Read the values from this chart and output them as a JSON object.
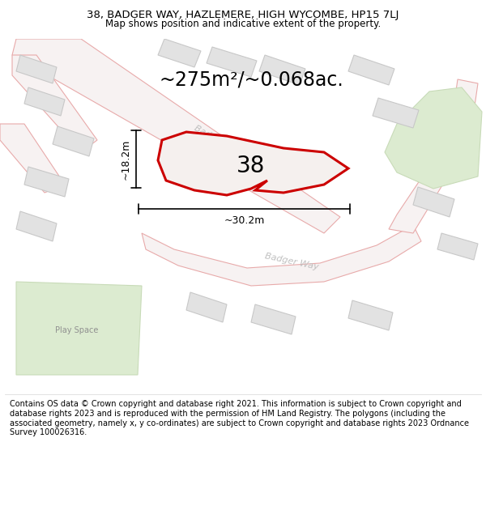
{
  "title_line1": "38, BADGER WAY, HAZLEMERE, HIGH WYCOMBE, HP15 7LJ",
  "title_line2": "Map shows position and indicative extent of the property.",
  "footer": "Contains OS data © Crown copyright and database right 2021. This information is subject to Crown copyright and database rights 2023 and is reproduced with the permission of HM Land Registry. The polygons (including the associated geometry, namely x, y co-ordinates) are subject to Crown copyright and database rights 2023 Ordnance Survey 100026316.",
  "area_text": "~275m²/~0.068ac.",
  "label_38": "38",
  "dim_width": "~30.2m",
  "dim_height": "~18.2m",
  "map_bg": "#f7f7f7",
  "property_fill": "#f5f0ee",
  "property_edge": "#cc0000",
  "road_edge": "#e8aaaa",
  "road_fill": "#f7f2f2",
  "building_fill": "#e2e2e2",
  "building_stroke": "#c8c8c8",
  "green_fill": "#dcebd0",
  "green_stroke": "#c8dbb8",
  "road_label_color": "#c0c0c0",
  "playspace_fill": "#e8eedd",
  "playspace_stroke": "#d0d8c0",
  "title_fontsize": 9.5,
  "subtitle_fontsize": 8.5,
  "footer_fontsize": 7.0,
  "area_fontsize": 17,
  "label_fontsize": 20,
  "dim_fontsize": 9
}
